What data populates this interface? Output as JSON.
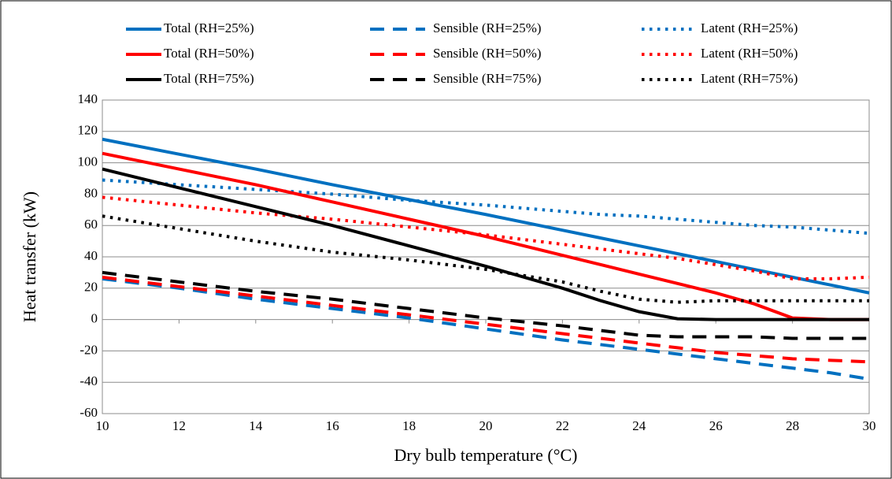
{
  "chart_data": {
    "type": "line",
    "xlabel": "Dry bulb temperature (°C)",
    "ylabel": "Heat transfer (kW)",
    "x": [
      10,
      12,
      14,
      16,
      18,
      20,
      22,
      23,
      24,
      25,
      26,
      27,
      28,
      29,
      30
    ],
    "xlim": [
      10,
      30
    ],
    "xticks": [
      10,
      12,
      14,
      16,
      18,
      20,
      22,
      24,
      26,
      28,
      30
    ],
    "ylim": [
      -60,
      140
    ],
    "yticks": [
      -60,
      -40,
      -20,
      0,
      20,
      40,
      60,
      80,
      100,
      120,
      140
    ],
    "grid": true,
    "legend": "top",
    "series": [
      {
        "name": "Total (RH=25%)",
        "color": "#0070c0",
        "style": "solid",
        "values": [
          115,
          105.5,
          96,
          86,
          76.5,
          67,
          57,
          52,
          47,
          42,
          37,
          32,
          27,
          22,
          17
        ]
      },
      {
        "name": "Sensible (RH=25%)",
        "color": "#0070c0",
        "style": "dashed",
        "values": [
          26,
          20,
          13,
          7,
          1,
          -6,
          -13,
          -16,
          -19,
          -22,
          -25,
          -28,
          -31,
          -34,
          -38
        ]
      },
      {
        "name": "Latent (RH=25%)",
        "color": "#0070c0",
        "style": "dotted",
        "values": [
          89,
          86,
          83,
          80,
          76,
          73,
          69,
          67,
          66,
          64,
          62,
          60,
          59,
          57,
          55
        ]
      },
      {
        "name": "Total (RH=50%)",
        "color": "#ff0000",
        "style": "solid",
        "values": [
          106,
          96,
          86,
          75,
          64,
          53,
          41,
          35,
          29,
          23,
          17,
          10,
          1,
          0,
          0
        ]
      },
      {
        "name": "Sensible (RH=50%)",
        "color": "#ff0000",
        "style": "dashed",
        "values": [
          27,
          21,
          15,
          9,
          3,
          -3,
          -9,
          -12,
          -15,
          -18,
          -21,
          -23,
          -25,
          -26,
          -27
        ]
      },
      {
        "name": "Latent (RH=50%)",
        "color": "#ff0000",
        "style": "dotted",
        "values": [
          78,
          73,
          68,
          64,
          59,
          54,
          48,
          45,
          42,
          39,
          35,
          31,
          26,
          26,
          27
        ]
      },
      {
        "name": "Total (RH=75%)",
        "color": "#000000",
        "style": "solid",
        "values": [
          96,
          84,
          72,
          60,
          47,
          34,
          20,
          12,
          5,
          0.5,
          0,
          0,
          0,
          0,
          0
        ]
      },
      {
        "name": "Sensible (RH=75%)",
        "color": "#000000",
        "style": "dashed",
        "values": [
          30,
          24,
          18,
          13,
          7,
          1,
          -4,
          -7,
          -10,
          -11,
          -11,
          -11,
          -12,
          -12,
          -12
        ]
      },
      {
        "name": "Latent (RH=75%)",
        "color": "#000000",
        "style": "dotted",
        "values": [
          66,
          58,
          50,
          43,
          38,
          32,
          24,
          18,
          13,
          11,
          12,
          12,
          12,
          12,
          12
        ]
      }
    ]
  }
}
